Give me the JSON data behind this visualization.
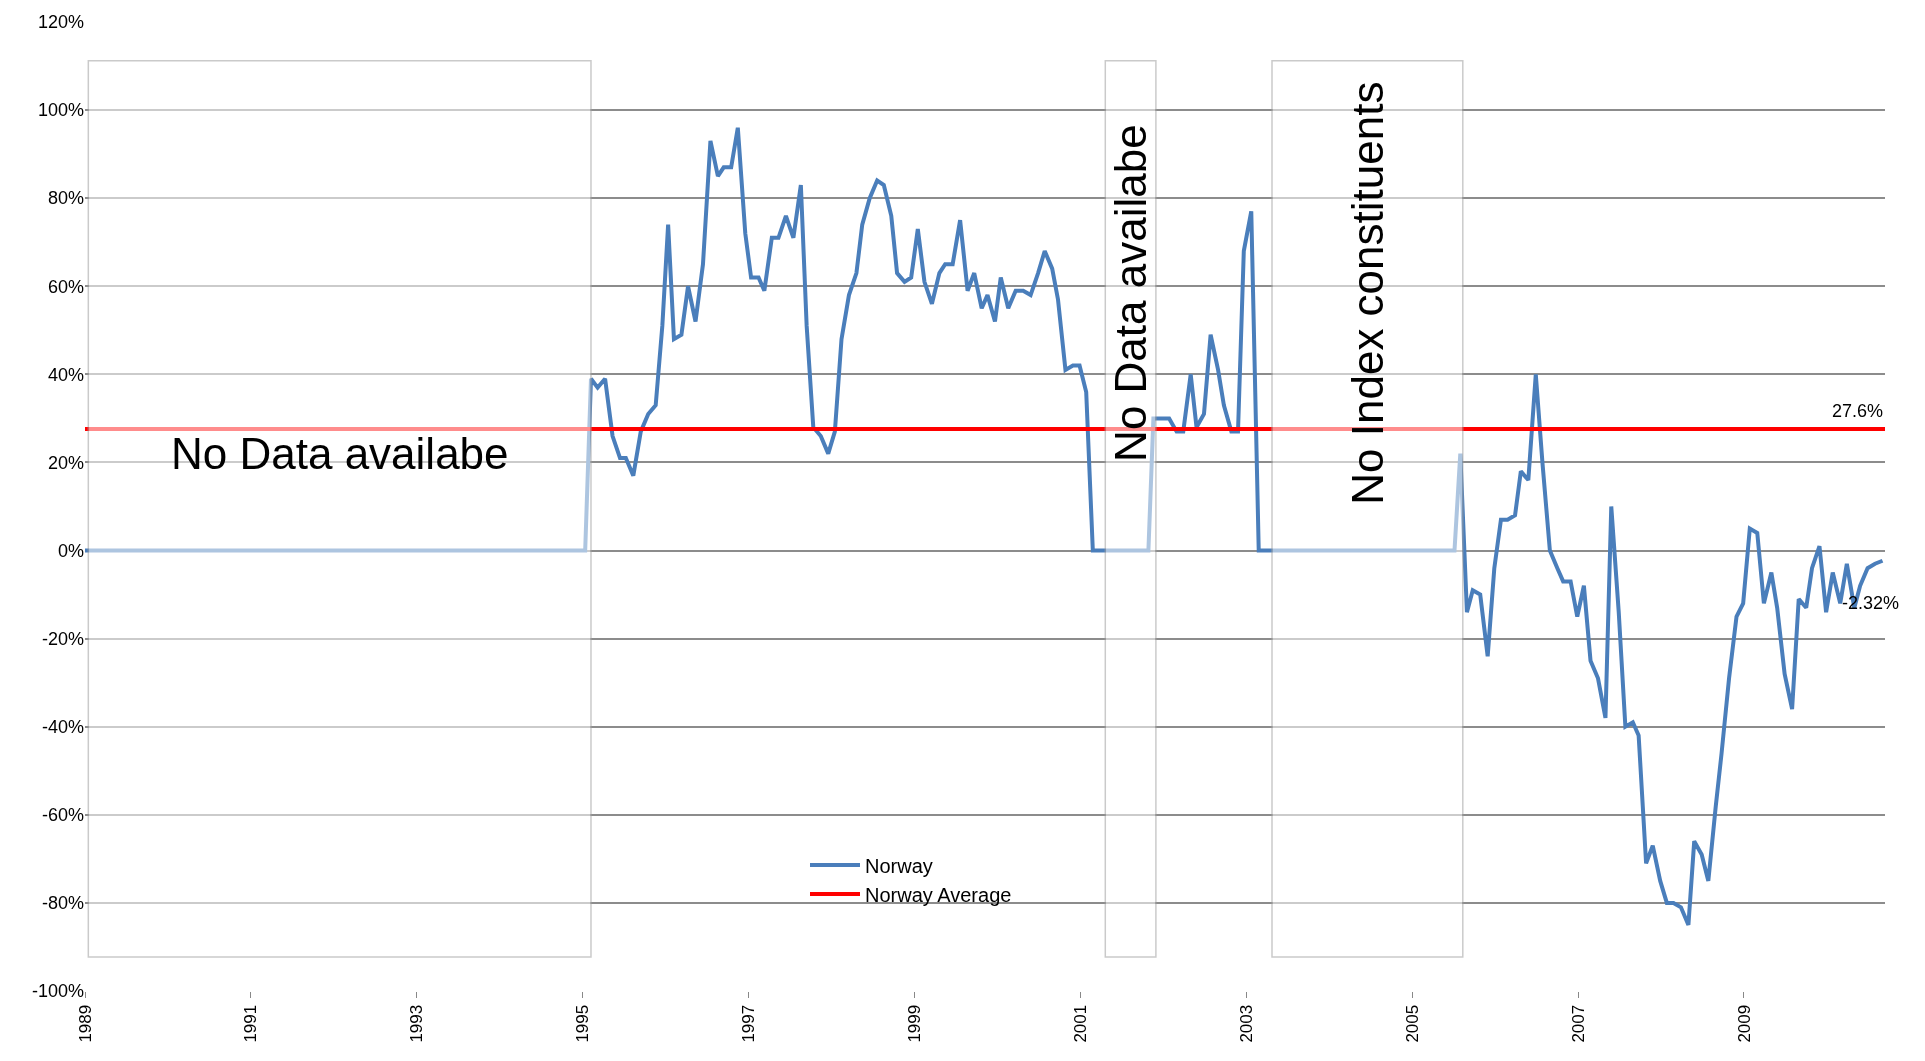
{
  "chart_data": {
    "type": "line",
    "xlim": [
      1989,
      2010.7
    ],
    "xticks": [
      1989,
      1991,
      1993,
      1995,
      1997,
      1999,
      2001,
      2003,
      2005,
      2007,
      2009
    ],
    "ylim": [
      -100,
      120
    ],
    "yticks": [
      {
        "value": -100,
        "label": "-100%"
      },
      {
        "value": -80,
        "label": "-80%"
      },
      {
        "value": -60,
        "label": "-60%"
      },
      {
        "value": -40,
        "label": "-40%"
      },
      {
        "value": -20,
        "label": "-20%"
      },
      {
        "value": 0,
        "label": "0%"
      },
      {
        "value": 20,
        "label": "20%"
      },
      {
        "value": 40,
        "label": "40%"
      },
      {
        "value": 60,
        "label": "60%"
      },
      {
        "value": 80,
        "label": "80%"
      },
      {
        "value": 100,
        "label": "100%"
      },
      {
        "value": 120,
        "label": "120%"
      }
    ],
    "grid": "y",
    "legend": "bottom",
    "marker": "none",
    "line_style": "solid",
    "series": [
      {
        "name": "Norway",
        "color": "#4a7ebb",
        "x": [
          1989,
          1995.03,
          1995.1,
          1995.18,
          1995.27,
          1995.36,
          1995.45,
          1995.52,
          1995.61,
          1995.7,
          1995.79,
          1995.88,
          1995.96,
          1996.03,
          1996.1,
          1996.19,
          1996.27,
          1996.36,
          1996.45,
          1996.54,
          1996.63,
          1996.7,
          1996.79,
          1996.87,
          1996.96,
          1997.03,
          1997.12,
          1997.19,
          1997.28,
          1997.36,
          1997.45,
          1997.54,
          1997.63,
          1997.7,
          1997.78,
          1997.87,
          1997.96,
          1998.04,
          1998.12,
          1998.21,
          1998.3,
          1998.37,
          1998.46,
          1998.55,
          1998.63,
          1998.72,
          1998.79,
          1998.88,
          1998.96,
          1999.04,
          1999.12,
          1999.21,
          1999.3,
          1999.37,
          1999.46,
          1999.55,
          1999.64,
          1999.72,
          1999.81,
          1999.88,
          1999.97,
          2000.04,
          2000.13,
          2000.22,
          2000.31,
          2000.4,
          2000.49,
          2000.57,
          2000.66,
          2000.73,
          2000.82,
          2000.91,
          2000.99,
          2001.07,
          2001.15,
          2001.82,
          2001.88,
          2001.99,
          2002.07,
          2002.16,
          2002.24,
          2002.33,
          2002.4,
          2002.49,
          2002.57,
          2002.66,
          2002.73,
          2002.82,
          2002.9,
          2002.97,
          2003.06,
          2003.15,
          2005.51,
          2005.58,
          2005.66,
          2005.73,
          2005.82,
          2005.91,
          2005.99,
          2006.07,
          2006.15,
          2006.24,
          2006.31,
          2006.4,
          2006.49,
          2006.57,
          2006.66,
          2006.75,
          2006.82,
          2006.91,
          2006.99,
          2007.07,
          2007.15,
          2007.24,
          2007.33,
          2007.4,
          2007.49,
          2007.57,
          2007.66,
          2007.73,
          2007.82,
          2007.9,
          2007.99,
          2008.07,
          2008.15,
          2008.24,
          2008.33,
          2008.4,
          2008.49,
          2008.57,
          2008.66,
          2008.73,
          2008.82,
          2008.91,
          2008.99,
          2009.07,
          2009.16,
          2009.24,
          2009.33,
          2009.4,
          2009.49,
          2009.58,
          2009.66,
          2009.75,
          2009.82,
          2009.91,
          2009.99,
          2010.07,
          2010.16,
          2010.24,
          2010.33,
          2010.4,
          2010.49,
          2010.58,
          2010.67
        ],
        "values": [
          0,
          0,
          39,
          37,
          39,
          26,
          21,
          21,
          17,
          27,
          31,
          33,
          51,
          74,
          48,
          49,
          60,
          52,
          65,
          93,
          85,
          87,
          87,
          96,
          72,
          62,
          62,
          59,
          71,
          71,
          76,
          71,
          83,
          51,
          28,
          26,
          22,
          27,
          48,
          58,
          63,
          74,
          80,
          84,
          83,
          76,
          63,
          61,
          62,
          73,
          61,
          56,
          63,
          65,
          65,
          75,
          59,
          63,
          55,
          58,
          52,
          62,
          55,
          59,
          59,
          58,
          63,
          68,
          64,
          57,
          41,
          42,
          42,
          36,
          0,
          0,
          30,
          30,
          30,
          27,
          27,
          40,
          28,
          31,
          49,
          41,
          33,
          27,
          27,
          68,
          77,
          0,
          0,
          22,
          -14,
          -9,
          -10,
          -24,
          -4,
          7,
          7,
          8,
          18,
          16,
          40,
          20,
          0,
          -4,
          -7,
          -7,
          -15,
          -8,
          -25,
          -29,
          -38,
          10,
          -14,
          -40,
          -39,
          -42,
          -71,
          -67,
          -75,
          -80,
          -80,
          -81,
          -85,
          -66,
          -69,
          -75,
          -58,
          -46,
          -29,
          -15,
          -12,
          5,
          4,
          -12,
          -5,
          -13,
          -28,
          -36,
          -11,
          -13,
          -4,
          1,
          -14,
          -5,
          -12,
          -3,
          -13,
          -8,
          -4,
          -3,
          -2.32
        ]
      },
      {
        "name": "Norway Average",
        "color": "#ff0000",
        "x": [
          1989,
          2010.7
        ],
        "values": [
          27.6,
          27.6
        ]
      }
    ],
    "bands": [
      {
        "axis": "x",
        "from": 1989.04,
        "to": 1995.1,
        "label": "No Data availabe",
        "color": "#ffffff"
      },
      {
        "axis": "x",
        "from": 2001.3,
        "to": 2001.91,
        "label": "No Data availabe",
        "color": "#ffffff"
      },
      {
        "axis": "x",
        "from": 2003.31,
        "to": 2005.61,
        "label": "No Index constituents",
        "color": "#ffffff"
      }
    ],
    "annotations": [
      {
        "text": "27.6%",
        "x": 2010.7,
        "y": 27.6
      },
      {
        "text": "-2.32%",
        "x": 2010.67,
        "y": -2.32
      }
    ]
  }
}
